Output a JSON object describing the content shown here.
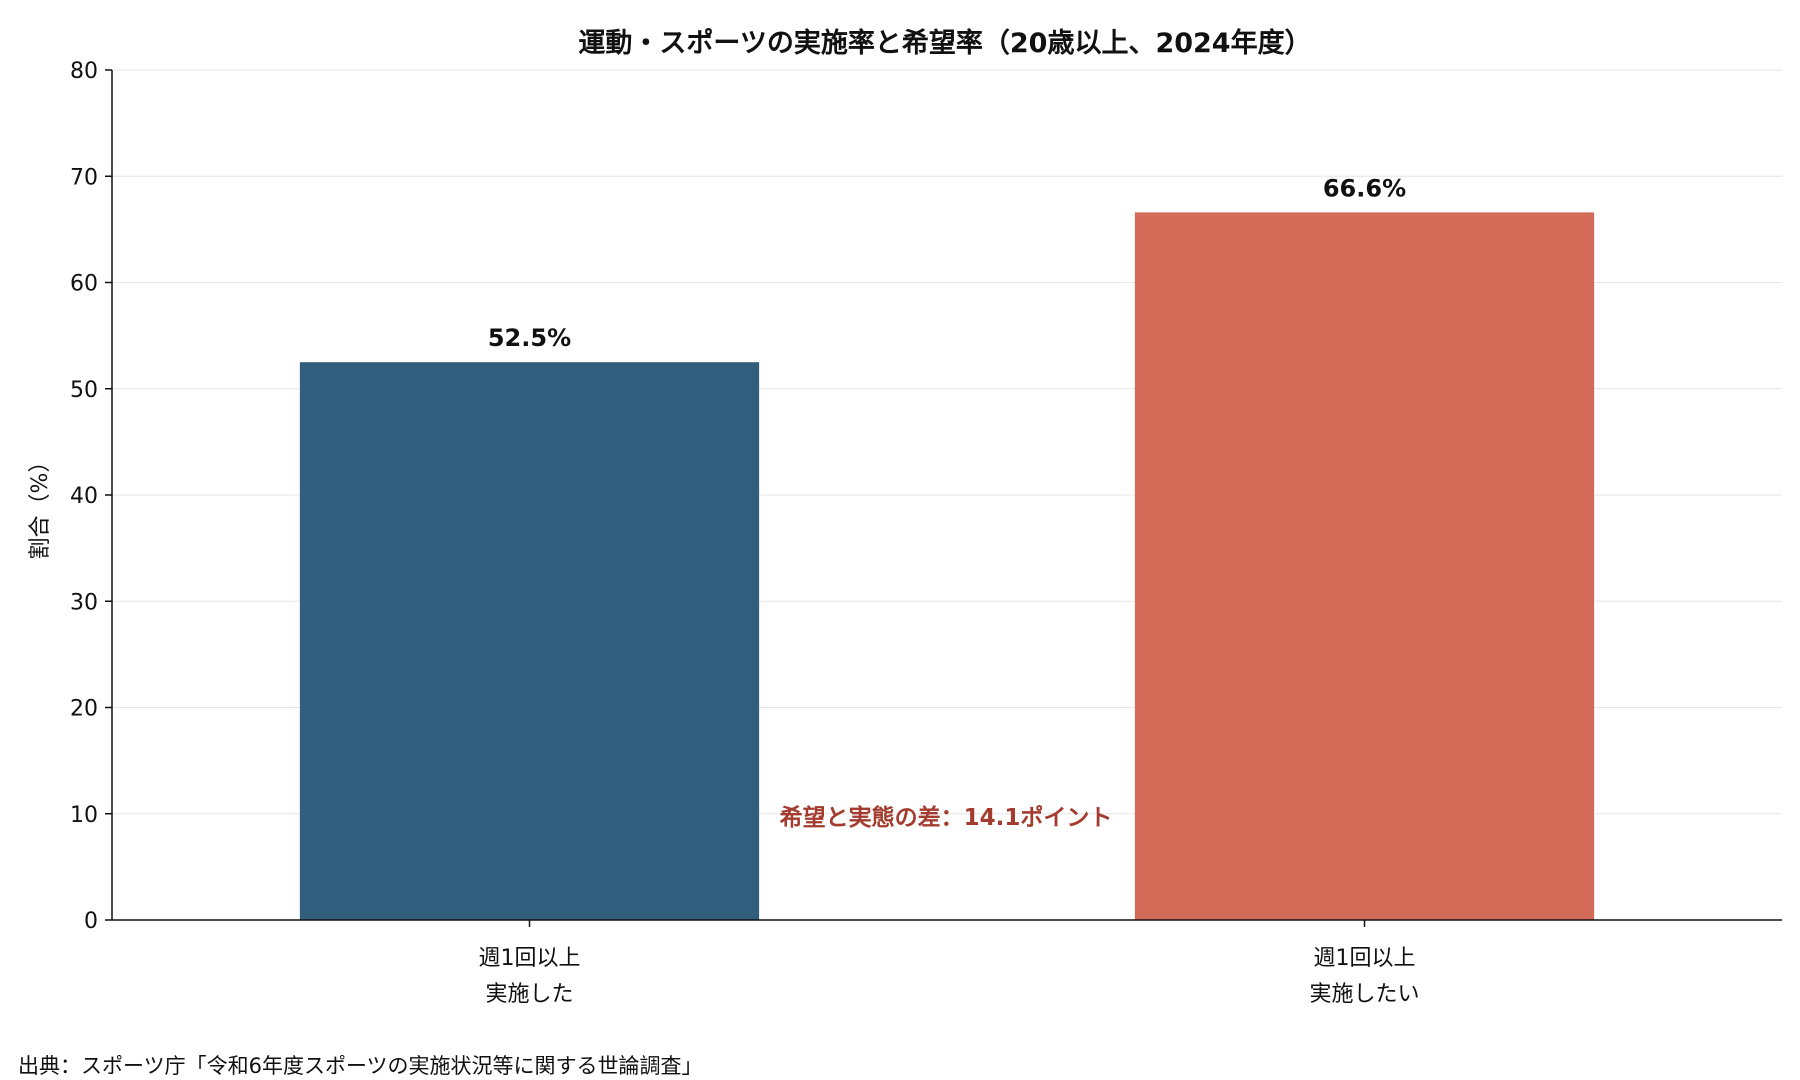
{
  "chart_data": {
    "type": "bar",
    "title": "運動・スポーツの実施率と希望率（20歳以上、2024年度）",
    "ylabel": "割合（%）",
    "xlabel": "",
    "ylim": [
      0,
      80
    ],
    "yticks": [
      0,
      10,
      20,
      30,
      40,
      50,
      60,
      70,
      80
    ],
    "grid": true,
    "categories": [
      [
        "週1回以上",
        "実施した"
      ],
      [
        "週1回以上",
        "実施したい"
      ]
    ],
    "values": [
      52.5,
      66.6
    ],
    "data_labels": [
      "52.5%",
      "66.6%"
    ],
    "colors": [
      "#315e7c",
      "#d46b58"
    ],
    "annotation": {
      "text": "希望と実態の差：14.1ポイント",
      "color": "#a33c2e"
    },
    "source": "出典：スポーツ庁「令和6年度スポーツの実施状況等に関する世論調査」"
  }
}
